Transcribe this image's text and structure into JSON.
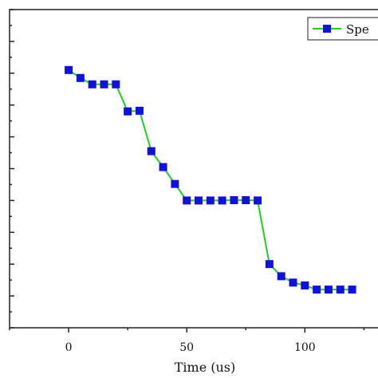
{
  "chart_data": {
    "type": "line",
    "xlabel": "Time (us)",
    "ylabel": "",
    "xlim": [
      -25,
      135
    ],
    "ylim": [
      0,
      10
    ],
    "x_ticks": [
      0,
      50,
      100
    ],
    "x_tick_labels": [
      "0",
      "50",
      "100"
    ],
    "series": [
      {
        "name": "Spe",
        "line_color": "#22cc22",
        "marker_color": "#1010e0",
        "marker": "square",
        "x": [
          0,
          5,
          10,
          15,
          20,
          25,
          30,
          35,
          40,
          45,
          50,
          55,
          60,
          65,
          70,
          75,
          80,
          85,
          90,
          95,
          100,
          105,
          110,
          115,
          120
        ],
        "y": [
          8.1,
          7.85,
          7.65,
          7.65,
          7.65,
          6.8,
          6.82,
          5.55,
          5.05,
          4.52,
          4.0,
          4.0,
          4.0,
          4.0,
          4.01,
          4.01,
          4.0,
          2.0,
          1.62,
          1.42,
          1.33,
          1.2,
          1.2,
          1.2,
          1.2
        ]
      }
    ],
    "legend": {
      "position": "top-right"
    },
    "grid": false
  }
}
